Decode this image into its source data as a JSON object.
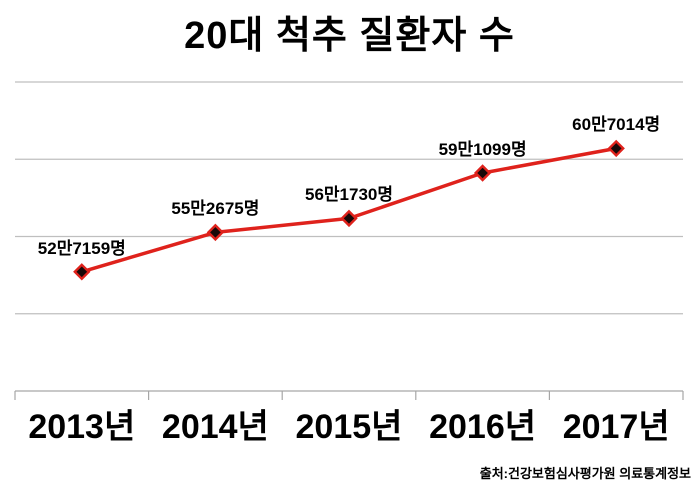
{
  "title": "20대 척추 질환자 수",
  "source": "출처:건강보험심사평가원 의료통계정보",
  "colors": {
    "line": "#df221c",
    "marker_fill": "#180808",
    "marker_stroke": "#df221c",
    "grid": "#bfbfbf",
    "axis": "#a6a6a6",
    "text": "#000000",
    "background": "#ffffff"
  },
  "chart_data": {
    "type": "line",
    "title": "20대 척추 질환자 수",
    "categories": [
      "2013년",
      "2014년",
      "2015년",
      "2016년",
      "2017년"
    ],
    "values": [
      527159,
      552675,
      561730,
      591099,
      607014
    ],
    "value_labels": [
      "52만7159명",
      "55만2675명",
      "56만1730명",
      "59만1099명",
      "60만7014명"
    ],
    "xlabel": "",
    "ylabel": "",
    "ylim": [
      450000,
      650000
    ],
    "grid_step": 50000,
    "grid": "horizontal",
    "legend_position": "none",
    "marker": "diamond"
  }
}
